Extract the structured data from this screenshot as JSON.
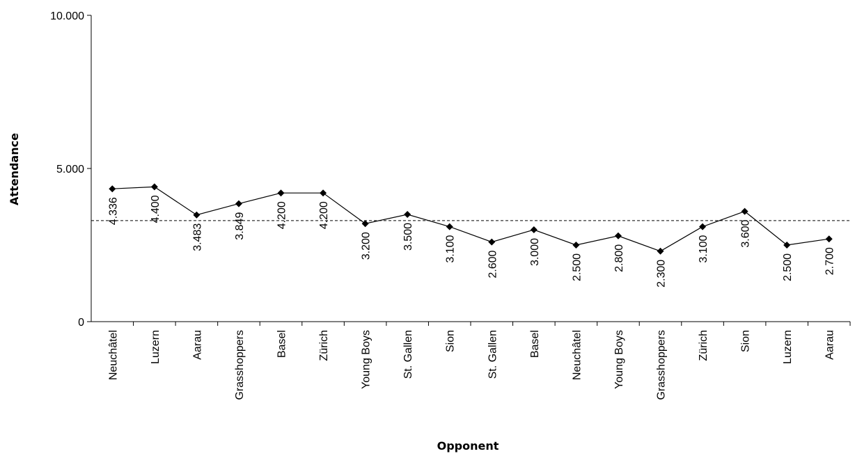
{
  "chart_data": {
    "type": "line",
    "xlabel": "Opponent",
    "ylabel": "Attendance",
    "ylim": [
      0,
      10000
    ],
    "y_ticks": [
      0,
      5000,
      10000
    ],
    "y_tick_labels": [
      "0",
      "5.000",
      "10.000"
    ],
    "grid": false,
    "legend": "none",
    "categories": [
      "Neuchâtel",
      "Luzern",
      "Aarau",
      "Grasshoppers",
      "Basel",
      "Zürich",
      "Young Boys",
      "St. Gallen",
      "Sion",
      "St. Gallen",
      "Basel",
      "Neuchâtel",
      "Young Boys",
      "Grasshoppers",
      "Zürich",
      "Sion",
      "Luzern",
      "Aarau"
    ],
    "series": [
      {
        "values": [
          4336,
          4400,
          3483,
          3849,
          4200,
          4200,
          3200,
          3500,
          3100,
          2600,
          3000,
          2500,
          2800,
          2300,
          3100,
          3600,
          2500,
          2700
        ],
        "value_labels": [
          "4.336",
          "4.400",
          "3.483",
          "3.849",
          "4.200",
          "4.200",
          "3.200",
          "3.500",
          "3.100",
          "2.600",
          "3.000",
          "2.500",
          "2.800",
          "2.300",
          "3.100",
          "3.600",
          "2.500",
          "2.700"
        ],
        "color": "#000000",
        "marker": "diamond"
      }
    ],
    "reference_line": {
      "value": 3297,
      "style": "dashed",
      "color": "#000000"
    }
  }
}
